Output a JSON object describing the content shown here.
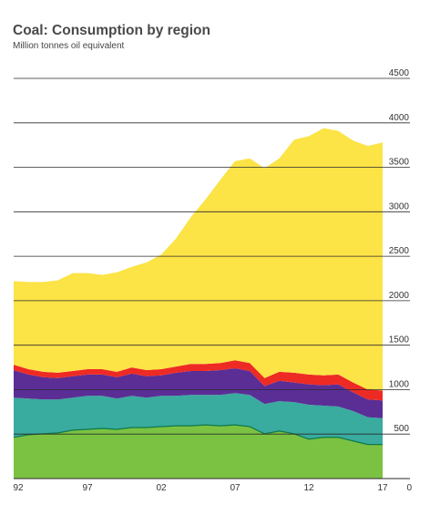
{
  "chart_data": {
    "type": "area",
    "title": "Coal: Consumption by region",
    "subtitle": "Million tonnes oil equivalent",
    "stacked": true,
    "x": [
      1992,
      1993,
      1994,
      1995,
      1996,
      1997,
      1998,
      1999,
      2000,
      2001,
      2002,
      2003,
      2004,
      2005,
      2006,
      2007,
      2008,
      2009,
      2010,
      2011,
      2012,
      2013,
      2014,
      2015,
      2016,
      2017
    ],
    "x_tick_labels": [
      "92",
      "97",
      "02",
      "07",
      "12",
      "17"
    ],
    "x_tick_years": [
      1992,
      1997,
      2002,
      2007,
      2012,
      2017
    ],
    "ylim": [
      0,
      4500
    ],
    "y_ticks": [
      0,
      500,
      1000,
      1500,
      2000,
      2500,
      3000,
      3500,
      4000,
      4500
    ],
    "grid": "horizontal",
    "legend": "none",
    "series": [
      {
        "color": "#7cc242",
        "values": [
          470,
          500,
          510,
          520,
          550,
          560,
          570,
          560,
          580,
          580,
          590,
          600,
          600,
          610,
          600,
          610,
          590,
          510,
          540,
          510,
          450,
          470,
          470,
          430,
          390,
          390
        ]
      },
      {
        "color": "#3aab9f",
        "values": [
          440,
          400,
          380,
          370,
          360,
          370,
          360,
          340,
          350,
          330,
          340,
          330,
          340,
          330,
          340,
          350,
          350,
          330,
          330,
          350,
          380,
          350,
          340,
          330,
          300,
          290
        ]
      },
      {
        "color": "#5b2e96",
        "values": [
          310,
          270,
          250,
          240,
          240,
          240,
          240,
          240,
          250,
          240,
          230,
          260,
          270,
          270,
          280,
          280,
          270,
          200,
          230,
          220,
          230,
          230,
          250,
          210,
          200,
          200
        ]
      },
      {
        "color": "#ee2a24",
        "values": [
          60,
          60,
          60,
          60,
          60,
          60,
          60,
          60,
          70,
          70,
          70,
          70,
          80,
          80,
          80,
          90,
          90,
          90,
          100,
          110,
          110,
          110,
          110,
          110,
          110,
          110
        ]
      },
      {
        "color": "#fce346",
        "values": [
          940,
          980,
          1010,
          1040,
          1100,
          1080,
          1060,
          1120,
          1130,
          1210,
          1290,
          1440,
          1650,
          1850,
          2060,
          2240,
          2300,
          2360,
          2400,
          2620,
          2680,
          2780,
          2740,
          2720,
          2740,
          2790
        ]
      }
    ]
  }
}
